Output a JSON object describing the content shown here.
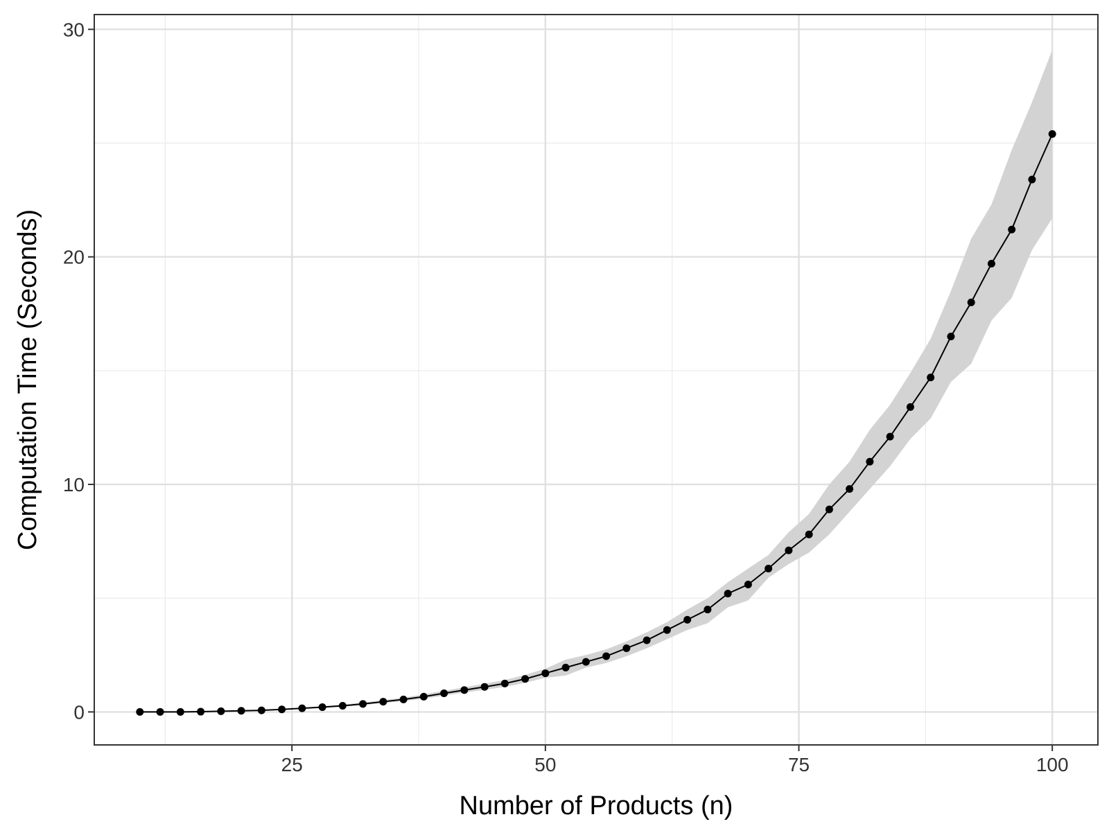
{
  "chart_data": {
    "type": "line",
    "x_label": "Number of Products (n)",
    "y_label": "Computation Time (Seconds)",
    "x": [
      10,
      12,
      14,
      16,
      18,
      20,
      22,
      24,
      26,
      28,
      30,
      32,
      34,
      36,
      38,
      40,
      42,
      44,
      46,
      48,
      50,
      52,
      54,
      56,
      58,
      60,
      62,
      64,
      66,
      68,
      70,
      72,
      74,
      76,
      78,
      80,
      82,
      84,
      86,
      88,
      90,
      92,
      94,
      96,
      98,
      100
    ],
    "values": [
      0,
      0,
      0,
      0.01,
      0.03,
      0.05,
      0.07,
      0.11,
      0.16,
      0.21,
      0.27,
      0.35,
      0.45,
      0.55,
      0.67,
      0.82,
      0.96,
      1.1,
      1.25,
      1.45,
      1.7,
      1.95,
      2.2,
      2.45,
      2.8,
      3.15,
      3.6,
      4.05,
      4.5,
      5.2,
      5.6,
      6.3,
      7.1,
      7.8,
      8.9,
      9.8,
      11.0,
      12.1,
      13.4,
      14.7,
      16.5,
      18.0,
      19.7,
      21.2,
      23.4,
      25.4
    ],
    "lower": [
      0,
      0,
      0,
      0.01,
      0.02,
      0.04,
      0.06,
      0.09,
      0.13,
      0.18,
      0.23,
      0.3,
      0.39,
      0.48,
      0.58,
      0.72,
      0.85,
      0.97,
      1.1,
      1.28,
      1.5,
      1.6,
      1.95,
      2.15,
      2.45,
      2.8,
      3.2,
      3.6,
      3.9,
      4.6,
      4.9,
      5.9,
      6.5,
      7.0,
      7.8,
      8.8,
      9.8,
      10.8,
      12.0,
      12.9,
      14.5,
      15.3,
      17.2,
      18.2,
      20.3,
      21.7
    ],
    "upper": [
      0,
      0,
      0,
      0.02,
      0.04,
      0.06,
      0.09,
      0.13,
      0.19,
      0.25,
      0.32,
      0.41,
      0.52,
      0.63,
      0.77,
      0.93,
      1.08,
      1.24,
      1.4,
      1.63,
      1.9,
      2.3,
      2.5,
      2.75,
      3.1,
      3.5,
      3.95,
      4.5,
      5.0,
      5.7,
      6.3,
      6.9,
      7.9,
      8.7,
      10.0,
      11.0,
      12.4,
      13.5,
      14.9,
      16.4,
      18.5,
      20.8,
      22.3,
      24.7,
      26.8,
      29.1
    ],
    "color": "#000000",
    "band_color": "#d3d3d3",
    "xlim": [
      5.5,
      104.5
    ],
    "xticks": [
      25,
      50,
      75,
      100
    ],
    "xminor": [
      12.5,
      37.5,
      62.5,
      87.5
    ],
    "ylim": [
      -1.45,
      30.65
    ],
    "yticks": [
      0,
      10,
      20,
      30
    ],
    "yminor": [
      5,
      15,
      25
    ],
    "grid": true
  }
}
